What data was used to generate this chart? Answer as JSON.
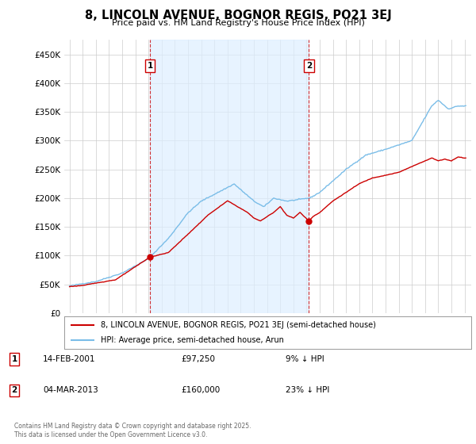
{
  "title": "8, LINCOLN AVENUE, BOGNOR REGIS, PO21 3EJ",
  "subtitle": "Price paid vs. HM Land Registry's House Price Index (HPI)",
  "legend_line1": "8, LINCOLN AVENUE, BOGNOR REGIS, PO21 3EJ (semi-detached house)",
  "legend_line2": "HPI: Average price, semi-detached house, Arun",
  "annotation1_date": "14-FEB-2001",
  "annotation1_price": "£97,250",
  "annotation1_hpi": "9% ↓ HPI",
  "annotation2_date": "04-MAR-2013",
  "annotation2_price": "£160,000",
  "annotation2_hpi": "23% ↓ HPI",
  "footer": "Contains HM Land Registry data © Crown copyright and database right 2025.\nThis data is licensed under the Open Government Licence v3.0.",
  "hpi_color": "#7abde8",
  "price_color": "#cc0000",
  "annotation_color": "#cc0000",
  "shade_color": "#ddeeff",
  "background_color": "#ffffff",
  "grid_color": "#cccccc",
  "ylim": [
    0,
    475000
  ],
  "yticks": [
    0,
    50000,
    100000,
    150000,
    200000,
    250000,
    300000,
    350000,
    400000,
    450000
  ],
  "sale1_x": 2001.12,
  "sale1_y": 97250,
  "sale2_x": 2013.17,
  "sale2_y": 160000,
  "xlim_left": 1994.6,
  "xlim_right": 2025.5
}
